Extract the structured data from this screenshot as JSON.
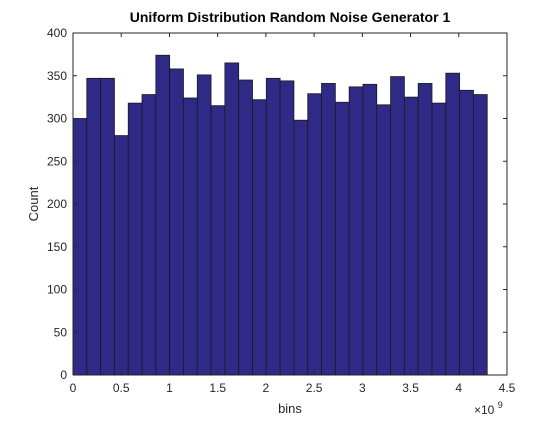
{
  "chart_data": {
    "type": "bar",
    "title": "Uniform Distribution Random Noise Generator 1",
    "xlabel": "bins",
    "ylabel": "Count",
    "x_exponent_label": "×10",
    "x_exponent_power": "9",
    "xlim": [
      0,
      4.5
    ],
    "ylim": [
      0,
      400
    ],
    "bin_start": 0,
    "bin_width": 0.14316557,
    "values": [
      300,
      347,
      347,
      280,
      318,
      328,
      374,
      358,
      324,
      351,
      315,
      365,
      345,
      322,
      347,
      344,
      298,
      329,
      341,
      319,
      337,
      340,
      316,
      349,
      325,
      341,
      318,
      353,
      333,
      328
    ],
    "x_ticks": [
      0,
      0.5,
      1,
      1.5,
      2,
      2.5,
      3,
      3.5,
      4,
      4.5
    ],
    "x_tick_labels": [
      "0",
      "0.5",
      "1",
      "1.5",
      "2",
      "2.5",
      "3",
      "3.5",
      "4",
      "4.5"
    ],
    "y_ticks": [
      0,
      50,
      100,
      150,
      200,
      250,
      300,
      350,
      400
    ],
    "y_tick_labels": [
      "0",
      "50",
      "100",
      "150",
      "200",
      "250",
      "300",
      "350",
      "400"
    ],
    "bar_color": "#2e2a86",
    "grid": false,
    "box": true
  }
}
